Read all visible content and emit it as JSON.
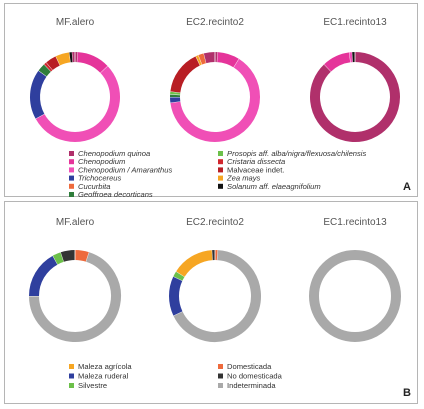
{
  "chart_data": [
    {
      "panel": "A",
      "type": "donut",
      "charts": [
        {
          "title": "MF.alero",
          "slices": [
            {
              "category": "Chenopodium quinoa",
              "value": 1
            },
            {
              "category": "Chenopodium",
              "value": 12
            },
            {
              "category": "Chenopodium / Amaranthus",
              "value": 54
            },
            {
              "category": "Trichocereus",
              "value": 18
            },
            {
              "category": "Geoffroea decorticans",
              "value": 3
            },
            {
              "category": "Cristaria dissecta",
              "value": 1
            },
            {
              "category": "Malvaceae indet.",
              "value": 4
            },
            {
              "category": "Zea mays",
              "value": 5
            },
            {
              "category": "Solanum aff. elaeagnifolium",
              "value": 1
            },
            {
              "category": "Chenopodium quinoa",
              "value": 1
            }
          ]
        },
        {
          "title": "EC2.recinto2",
          "slices": [
            {
              "category": "Chenopodium quinoa",
              "value": 1
            },
            {
              "category": "Chenopodium",
              "value": 8
            },
            {
              "category": "Chenopodium / Amaranthus",
              "value": 64
            },
            {
              "category": "Trichocereus",
              "value": 2
            },
            {
              "category": "Geoffroea decorticans",
              "value": 1
            },
            {
              "category": "Prosopis aff. alba/nigra/flexuosa/chilensis",
              "value": 1
            },
            {
              "category": "Malvaceae indet.",
              "value": 16
            },
            {
              "category": "Zea mays",
              "value": 1
            },
            {
              "category": "Cucurbita",
              "value": 2
            },
            {
              "category": "Chenopodium quinoa",
              "value": 4
            }
          ]
        },
        {
          "title": "EC1.recinto13",
          "slices": [
            {
              "category": "Chenopodium quinoa",
              "value": 88
            },
            {
              "category": "Chenopodium",
              "value": 10
            },
            {
              "category": "Chenopodium / Amaranthus",
              "value": 1
            },
            {
              "category": "Solanum aff. elaeagnifolium",
              "value": 1
            }
          ]
        }
      ],
      "legend": [
        {
          "label": "Chenopodium quinoa",
          "color": "#b0306b",
          "italic": true
        },
        {
          "label": "Chenopodium",
          "color": "#e5349a",
          "italic": true
        },
        {
          "label": "Chenopodium / Amaranthus",
          "color": "#f04fb6",
          "italic": true
        },
        {
          "label": "Trichocereus",
          "color": "#2f3f9e",
          "italic": true
        },
        {
          "label": "Cucurbita",
          "color": "#ee6a3c",
          "italic": true
        },
        {
          "label": "Geoffroea decorticans",
          "color": "#2e7d3b",
          "italic": true
        },
        {
          "label": "Prosopis aff. alba/nigra/flexuosa/chilensis",
          "color": "#6cc04a",
          "italic": true
        },
        {
          "label": "Cristaria dissecta",
          "color": "#d1262e",
          "italic": true
        },
        {
          "label": "Malvaceae indet.",
          "color": "#b81e24",
          "italic": false
        },
        {
          "label": "Zea mays",
          "color": "#f6a623",
          "italic": true
        },
        {
          "label": "Solanum aff. elaeagnifolium",
          "color": "#111111",
          "italic": true
        }
      ]
    },
    {
      "panel": "B",
      "type": "donut",
      "charts": [
        {
          "title": "MF.alero",
          "slices": [
            {
              "category": "Domesticada",
              "value": 5
            },
            {
              "category": "Indeterminada",
              "value": 70
            },
            {
              "category": "Maleza ruderal",
              "value": 17
            },
            {
              "category": "Silvestre",
              "value": 3
            },
            {
              "category": "No domesticada",
              "value": 5
            }
          ]
        },
        {
          "title": "EC2.recinto2",
          "slices": [
            {
              "category": "Domesticada",
              "value": 1
            },
            {
              "category": "Indeterminada",
              "value": 67
            },
            {
              "category": "Maleza ruderal",
              "value": 14
            },
            {
              "category": "Silvestre",
              "value": 2
            },
            {
              "category": "Maleza agrícola",
              "value": 15
            },
            {
              "category": "No domesticada",
              "value": 1
            }
          ]
        },
        {
          "title": "EC1.recinto13",
          "slices": [
            {
              "category": "Indeterminada",
              "value": 100
            }
          ]
        }
      ],
      "legend": [
        {
          "label": "Maleza agrícola",
          "color": "#f6a623",
          "italic": false
        },
        {
          "label": "Maleza ruderal",
          "color": "#2f3f9e",
          "italic": false
        },
        {
          "label": "Silvestre",
          "color": "#6cc04a",
          "italic": false
        },
        {
          "label": "Domesticada",
          "color": "#ee6a3c",
          "italic": false
        },
        {
          "label": "No domesticada",
          "color": "#333333",
          "italic": false
        },
        {
          "label": "Indeterminada",
          "color": "#a9a9a9",
          "italic": false
        }
      ]
    }
  ]
}
